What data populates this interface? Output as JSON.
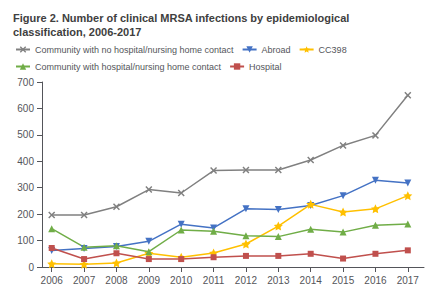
{
  "chart_data": {
    "type": "line",
    "title": "Figure 2. Number of clinical MRSA infections by epidemiological\nclassification, 2006-2017",
    "x": [
      2006,
      2007,
      2008,
      2009,
      2010,
      2011,
      2012,
      2013,
      2014,
      2015,
      2016,
      2017
    ],
    "series": [
      {
        "name": "Community with no hospital/nursing home contact",
        "color": "#808080",
        "marker": "x",
        "values": [
          197,
          197,
          228,
          293,
          280,
          365,
          367,
          367,
          405,
          460,
          498,
          650
        ]
      },
      {
        "name": "Abroad",
        "color": "#4472C4",
        "marker": "triangle_down",
        "values": [
          62,
          70,
          78,
          97,
          162,
          148,
          220,
          218,
          233,
          270,
          328,
          318
        ]
      },
      {
        "name": "CC398",
        "color": "#FFC000",
        "marker": "star",
        "values": [
          12,
          10,
          15,
          52,
          37,
          53,
          87,
          155,
          237,
          208,
          220,
          270
        ]
      },
      {
        "name": "Community with hospital/nursing home contact",
        "color": "#70AD47",
        "marker": "triangle",
        "values": [
          145,
          75,
          80,
          58,
          140,
          135,
          118,
          115,
          143,
          132,
          158,
          163
        ]
      },
      {
        "name": "Hospital",
        "color": "#C0504D",
        "marker": "square",
        "values": [
          72,
          30,
          52,
          30,
          30,
          37,
          42,
          42,
          50,
          32,
          50,
          63
        ]
      }
    ],
    "xlim": [
      2005.7,
      2017.5
    ],
    "xticks": [
      2006,
      2007,
      2008,
      2009,
      2010,
      2011,
      2012,
      2013,
      2014,
      2015,
      2016,
      2017
    ],
    "ylim": [
      0,
      700
    ],
    "yticks": [
      0,
      100,
      200,
      300,
      400,
      500,
      600,
      700
    ],
    "grid": false,
    "legend": "upper left"
  }
}
